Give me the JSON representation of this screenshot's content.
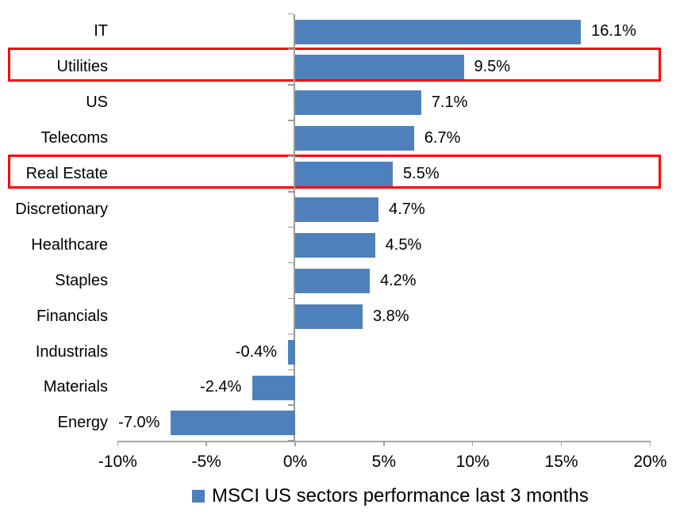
{
  "chart_data": {
    "type": "bar",
    "orientation": "horizontal",
    "title": "",
    "legend": "MSCI US sectors performance last 3 months",
    "legend_position": "bottom",
    "categories": [
      "IT",
      "Utilities",
      "US",
      "Telecoms",
      "Real Estate",
      "Discretionary",
      "Healthcare",
      "Staples",
      "Financials",
      "Industrials",
      "Materials",
      "Energy"
    ],
    "values": [
      16.1,
      9.5,
      7.1,
      6.7,
      5.5,
      4.7,
      4.5,
      4.2,
      3.8,
      -0.4,
      -2.4,
      -7.0
    ],
    "value_labels": [
      "16.1%",
      "9.5%",
      "7.1%",
      "6.7%",
      "5.5%",
      "4.7%",
      "4.5%",
      "4.2%",
      "3.8%",
      "-0.4%",
      "-2.4%",
      "-7.0%"
    ],
    "highlighted_categories": [
      "Utilities",
      "Real Estate"
    ],
    "x_axis": {
      "min": -10,
      "max": 20,
      "tick_step": 5,
      "tick_labels": [
        "-10%",
        "-5%",
        "0%",
        "5%",
        "10%",
        "15%",
        "20%"
      ]
    },
    "grid": false,
    "colors": {
      "bar": "#4E81BB",
      "highlight_box": "#FF0000",
      "x_axis_line": "#A6A6A6",
      "y_axis_line": "#9B9B9B",
      "text": "#000000",
      "background": "#FFFFFF"
    }
  }
}
